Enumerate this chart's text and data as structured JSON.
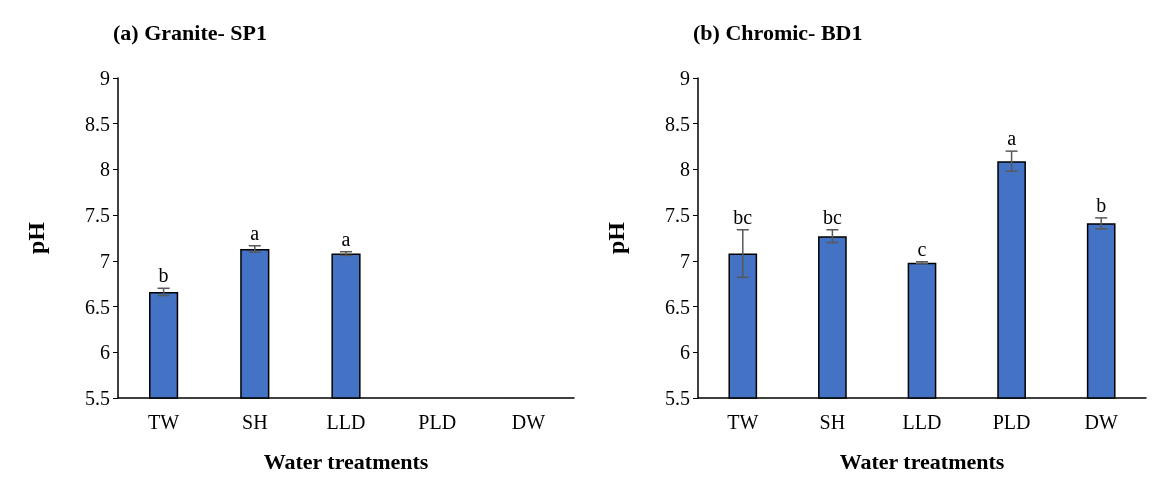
{
  "chart_data": [
    {
      "type": "bar",
      "title": "(a) Granite- SP1",
      "xlabel": "Water treatments",
      "ylabel": "pH",
      "categories": [
        "TW",
        "SH",
        "LLD",
        "PLD",
        "DW"
      ],
      "series": [
        {
          "color": "#4472c4",
          "values": [
            6.66,
            7.13,
            7.08,
            null,
            null
          ],
          "errors": [
            0.04,
            0.035,
            0.02,
            null,
            null
          ],
          "value_labels": [
            "b",
            "a",
            "a",
            null,
            null
          ]
        }
      ],
      "ylim": [
        5.5,
        9
      ],
      "yticks": [
        5.5,
        6,
        6.5,
        7,
        7.5,
        8,
        8.5,
        9
      ]
    },
    {
      "type": "bar",
      "title": "(b) Chromic- BD1",
      "xlabel": "Water treatments",
      "ylabel": "pH",
      "categories": [
        "TW",
        "SH",
        "LLD",
        "PLD",
        "DW"
      ],
      "series": [
        {
          "color": "#4472c4",
          "values": [
            7.08,
            7.27,
            6.98,
            8.09,
            7.41
          ],
          "errors": [
            0.26,
            0.07,
            0.01,
            0.11,
            0.06
          ],
          "value_labels": [
            "bc",
            "bc",
            "c",
            "a",
            "b"
          ]
        }
      ],
      "ylim": [
        5.5,
        9
      ],
      "yticks": [
        5.5,
        6,
        6.5,
        7,
        7.5,
        8,
        8.5,
        9
      ]
    }
  ]
}
